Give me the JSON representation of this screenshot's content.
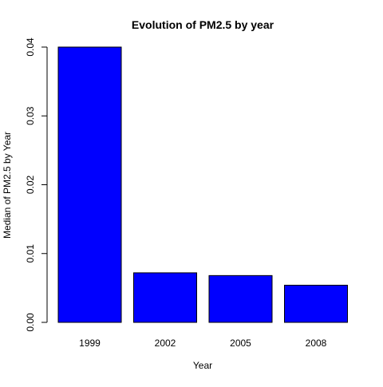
{
  "chart_data": {
    "type": "bar",
    "title": "Evolution of PM2.5 by year",
    "xlabel": "Year",
    "ylabel": "Median of PM2.5 by Year",
    "categories": [
      "1999",
      "2002",
      "2005",
      "2008"
    ],
    "values": [
      0.04,
      0.0072,
      0.0068,
      0.0054
    ],
    "ylim": [
      0,
      0.04
    ],
    "yticks": [
      0.0,
      0.01,
      0.02,
      0.03,
      0.04
    ],
    "ytick_labels": [
      "0.00",
      "0.01",
      "0.02",
      "0.03",
      "0.04"
    ],
    "bar_color": "#0000ff",
    "bar_border_color": "#000000",
    "grid": false,
    "legend": false
  }
}
